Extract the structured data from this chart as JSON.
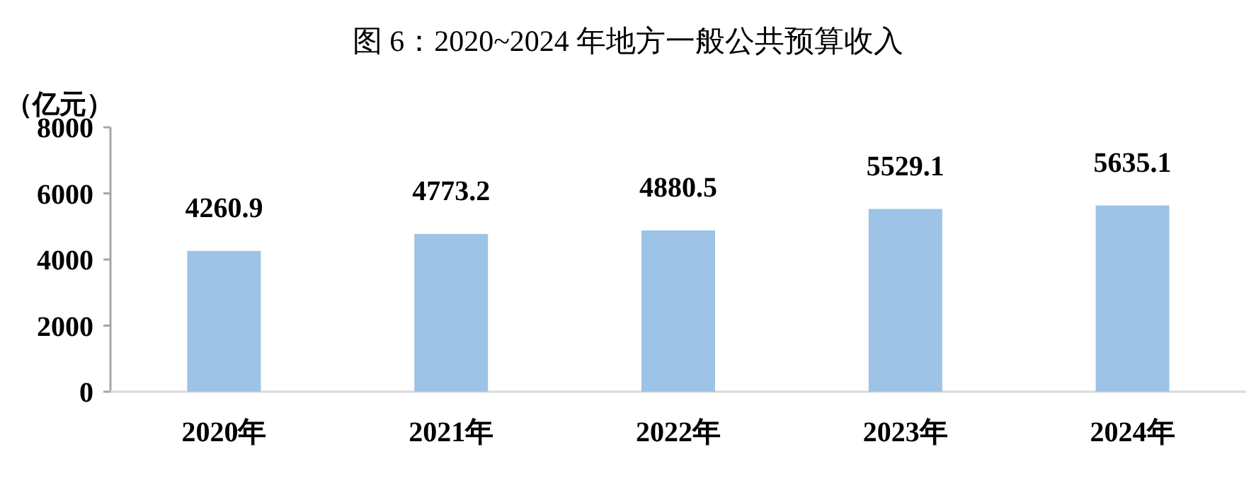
{
  "chart_data": {
    "type": "bar",
    "title": "图 6：2020~2024 年地方一般公共预算收入",
    "ylabel": "（亿元）",
    "categories": [
      "2020年",
      "2021年",
      "2022年",
      "2023年",
      "2024年"
    ],
    "values": [
      4260.9,
      4773.2,
      4880.5,
      5529.1,
      5635.1
    ],
    "color": "#9dc3e6",
    "ylim": [
      0,
      8000
    ],
    "yticks": [
      0,
      2000,
      4000,
      6000,
      8000
    ],
    "data_labels": true
  }
}
